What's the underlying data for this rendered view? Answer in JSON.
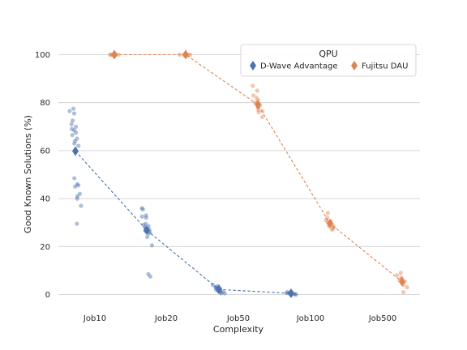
{
  "chart_data": {
    "type": "scatter",
    "title": "",
    "xlabel": "Complexity",
    "ylabel": "Good Known Solutions (%)",
    "categories": [
      "Job10",
      "Job20",
      "Job50",
      "Job100",
      "Job500"
    ],
    "ylim": [
      -2,
      108
    ],
    "yticks": [
      0,
      20,
      40,
      60,
      80,
      100
    ],
    "grid": "horizontal",
    "legend": {
      "title": "QPU",
      "placement": "top-right"
    },
    "series": [
      {
        "name": "D-Wave Advantage",
        "color": "#4c72b0",
        "means": [
          59.8,
          26.8,
          2.1,
          0.5,
          null
        ],
        "points": [
          [
            77.5,
            76.5,
            75.5,
            72.5,
            71,
            70,
            69,
            68.5,
            67.5,
            66.5,
            65,
            64,
            63,
            62,
            48.5,
            46,
            45.5,
            45,
            42,
            41,
            40,
            37,
            29.5
          ],
          [
            36,
            35.5,
            33,
            32.5,
            32,
            29.5,
            29,
            28.5,
            28,
            27.5,
            27,
            26.5,
            26,
            25.5,
            24,
            20.5,
            8.5,
            7.5
          ],
          [
            4,
            3.5,
            3,
            3,
            2.5,
            2,
            2,
            1.5,
            1.5,
            1,
            1,
            0.5,
            0.5
          ],
          [
            1,
            0.8,
            0.6,
            0.5,
            0.4,
            0.3,
            0.2,
            0.2,
            0.1,
            0
          ],
          []
        ]
      },
      {
        "name": "Fujitsu DAU",
        "color": "#dd8452",
        "means": [
          100,
          100,
          79.2,
          29.6,
          5.3
        ],
        "points": [
          [
            100,
            100,
            100,
            100,
            100,
            100,
            100
          ],
          [
            100,
            100,
            100,
            100,
            100,
            100
          ],
          [
            87,
            85,
            83,
            82,
            81,
            80,
            79,
            78,
            77,
            76.5,
            76,
            74
          ],
          [
            34,
            32,
            31,
            30.5,
            30,
            29.5,
            29,
            28.5,
            28,
            27.5,
            27
          ],
          [
            9,
            8,
            7,
            6.5,
            6,
            5.5,
            5,
            4,
            3,
            1
          ]
        ]
      }
    ]
  }
}
